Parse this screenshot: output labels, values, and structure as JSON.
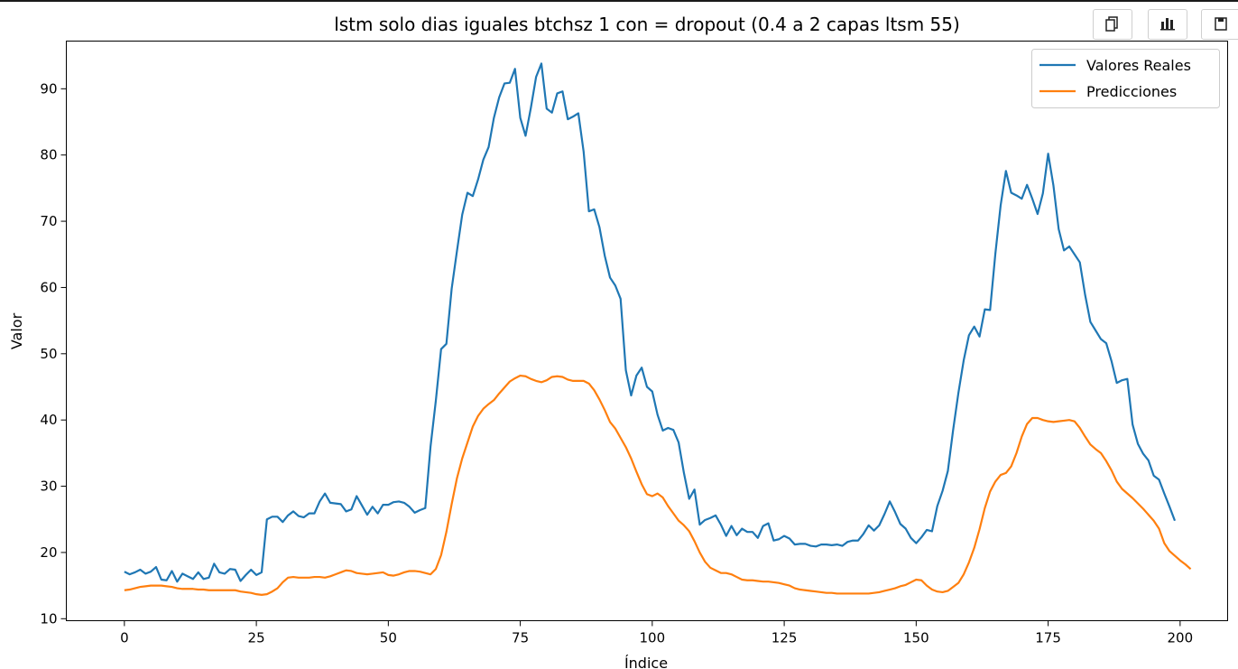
{
  "toolbar": {
    "buttons": [
      {
        "icon": "copy-icon"
      },
      {
        "icon": "bar-chart-icon"
      },
      {
        "icon": "save-icon"
      }
    ]
  },
  "chart_data": {
    "type": "line",
    "title": "lstm solo dias iguales btchsz 1 con = dropout (0.4 a 2 capas ltsm 55)",
    "xlabel": "Índice",
    "ylabel": "Valor",
    "xlim": [
      -11,
      209
    ],
    "ylim": [
      9.7,
      97.2
    ],
    "xticks": [
      0,
      25,
      50,
      75,
      100,
      125,
      150,
      175,
      200
    ],
    "yticks": [
      10,
      20,
      30,
      40,
      50,
      60,
      70,
      80,
      90
    ],
    "grid": false,
    "legend_position": "top-right",
    "colors": {
      "Valores Reales": "#1f77b4",
      "Predicciones": "#ff7f0e"
    },
    "series": [
      {
        "name": "Valores Reales",
        "values": [
          17.1,
          16.7,
          17.0,
          17.4,
          16.8,
          17.1,
          17.8,
          15.9,
          15.8,
          17.2,
          15.6,
          16.8,
          16.4,
          16.0,
          17.0,
          16.0,
          16.2,
          18.3,
          17.0,
          16.8,
          17.5,
          17.4,
          15.7,
          16.6,
          17.4,
          16.6,
          17.0,
          25.0,
          25.4,
          25.4,
          24.6,
          25.6,
          26.2,
          25.5,
          25.3,
          25.9,
          25.9,
          27.7,
          28.9,
          27.5,
          27.4,
          27.3,
          26.2,
          26.5,
          28.5,
          27.1,
          25.7,
          26.9,
          25.9,
          27.2,
          27.2,
          27.6,
          27.7,
          27.5,
          26.9,
          26.0,
          26.4,
          26.7,
          36.0,
          42.9,
          50.7,
          51.5,
          59.8,
          65.5,
          71.0,
          74.3,
          73.8,
          76.3,
          79.3,
          81.2,
          85.6,
          88.7,
          90.8,
          90.9,
          93.0,
          85.6,
          82.9,
          87.1,
          91.8,
          93.8,
          87.0,
          86.4,
          89.3,
          89.6,
          85.4,
          85.8,
          86.3,
          80.5,
          71.5,
          71.8,
          69.1,
          64.8,
          61.5,
          60.3,
          58.3,
          47.5,
          43.7,
          46.7,
          47.9,
          45.0,
          44.3,
          40.8,
          38.4,
          38.8,
          38.5,
          36.6,
          32.0,
          28.1,
          29.5,
          24.2,
          24.9,
          25.2,
          25.6,
          24.2,
          22.5,
          24.0,
          22.6,
          23.6,
          23.1,
          23.1,
          22.2,
          24.0,
          24.4,
          21.8,
          22.0,
          22.5,
          22.1,
          21.2,
          21.3,
          21.3,
          21.0,
          20.9,
          21.2,
          21.2,
          21.1,
          21.2,
          21.0,
          21.6,
          21.8,
          21.8,
          22.8,
          24.1,
          23.3,
          24.1,
          25.8,
          27.7,
          26.1,
          24.3,
          23.6,
          22.2,
          21.4,
          22.3,
          23.4,
          23.2,
          27.0,
          29.3,
          32.3,
          38.5,
          44.1,
          49.0,
          52.8,
          54.1,
          52.6,
          56.7,
          56.6,
          65.1,
          72.4,
          77.6,
          74.3,
          73.9,
          73.4,
          75.5,
          73.4,
          71.1,
          74.2,
          80.2,
          75.4,
          68.8,
          65.6,
          66.2,
          65.0,
          63.8,
          58.9,
          54.8,
          53.5,
          52.2,
          51.6,
          48.9,
          45.6,
          46.0,
          46.2,
          39.3,
          36.4,
          34.9,
          33.9,
          31.6,
          31.0,
          28.9,
          26.9,
          24.8
        ]
      },
      {
        "name": "Predicciones",
        "values": [
          14.3,
          14.4,
          14.6,
          14.8,
          14.9,
          15.0,
          15.0,
          15.0,
          14.9,
          14.8,
          14.6,
          14.5,
          14.5,
          14.5,
          14.4,
          14.4,
          14.3,
          14.3,
          14.3,
          14.3,
          14.3,
          14.3,
          14.1,
          14.0,
          13.9,
          13.7,
          13.6,
          13.7,
          14.1,
          14.6,
          15.5,
          16.2,
          16.3,
          16.2,
          16.2,
          16.2,
          16.3,
          16.3,
          16.2,
          16.4,
          16.7,
          17.0,
          17.3,
          17.2,
          16.9,
          16.8,
          16.7,
          16.8,
          16.9,
          17.0,
          16.6,
          16.5,
          16.7,
          17.0,
          17.2,
          17.2,
          17.1,
          16.9,
          16.7,
          17.5,
          19.6,
          23.1,
          27.3,
          31.2,
          34.2,
          36.6,
          39.0,
          40.6,
          41.7,
          42.4,
          43.0,
          44.0,
          44.9,
          45.8,
          46.3,
          46.7,
          46.6,
          46.2,
          45.9,
          45.7,
          46.0,
          46.5,
          46.6,
          46.5,
          46.1,
          45.9,
          45.9,
          45.9,
          45.5,
          44.5,
          43.1,
          41.5,
          39.7,
          38.7,
          37.3,
          35.9,
          34.2,
          32.2,
          30.3,
          28.8,
          28.5,
          28.9,
          28.3,
          27.0,
          25.9,
          24.8,
          24.1,
          23.2,
          21.7,
          20.0,
          18.6,
          17.7,
          17.3,
          16.9,
          16.9,
          16.7,
          16.3,
          15.9,
          15.8,
          15.8,
          15.7,
          15.6,
          15.6,
          15.5,
          15.4,
          15.2,
          15.0,
          14.6,
          14.4,
          14.3,
          14.2,
          14.1,
          14.0,
          13.9,
          13.9,
          13.8,
          13.8,
          13.8,
          13.8,
          13.8,
          13.8,
          13.8,
          13.9,
          14.0,
          14.2,
          14.4,
          14.6,
          14.9,
          15.1,
          15.5,
          15.9,
          15.8,
          15.0,
          14.4,
          14.1,
          14.0,
          14.2,
          14.8,
          15.4,
          16.7,
          18.5,
          20.7,
          23.5,
          26.7,
          29.2,
          30.7,
          31.7,
          32.0,
          33.0,
          35.0,
          37.5,
          39.4,
          40.3,
          40.3,
          40.0,
          39.8,
          39.7,
          39.8,
          39.9,
          40.0,
          39.8,
          38.8,
          37.5,
          36.3,
          35.6,
          35.0,
          33.8,
          32.4,
          30.7,
          29.6,
          28.9,
          28.2,
          27.4,
          26.6,
          25.7,
          24.8,
          23.6,
          21.4,
          20.2,
          19.5,
          18.8,
          18.2,
          17.5
        ]
      }
    ]
  }
}
